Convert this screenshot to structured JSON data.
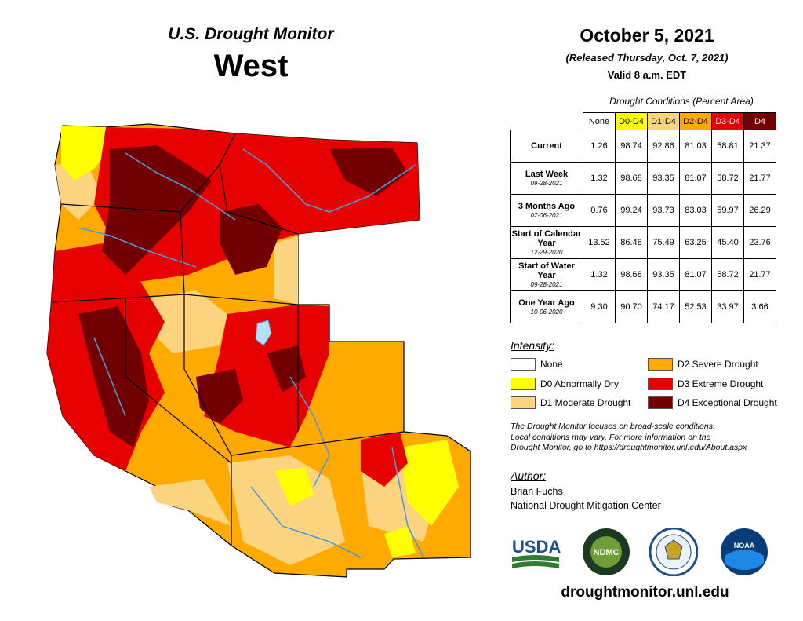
{
  "header": {
    "product": "U.S. Drought Monitor",
    "region": "West",
    "date": "October 5, 2021",
    "released": "(Released Thursday, Oct. 7, 2021)",
    "valid": "Valid 8 a.m. EDT"
  },
  "table": {
    "caption": "Drought Conditions (Percent Area)",
    "columns": [
      "None",
      "D0-D4",
      "D1-D4",
      "D2-D4",
      "D3-D4",
      "D4"
    ],
    "column_colors": [
      "#ffffff",
      "#ffff00",
      "#fcd37f",
      "#ffaa00",
      "#e60000",
      "#730000"
    ],
    "rows": [
      {
        "label": "Current",
        "sub": "",
        "values": [
          "1.26",
          "98.74",
          "92.86",
          "81.03",
          "58.81",
          "21.37"
        ]
      },
      {
        "label": "Last Week",
        "sub": "09-28-2021",
        "values": [
          "1.32",
          "98.68",
          "93.35",
          "81.07",
          "58.72",
          "21.77"
        ]
      },
      {
        "label": "3 Months Ago",
        "sub": "07-06-2021",
        "values": [
          "0.76",
          "99.24",
          "93.73",
          "83.03",
          "59.97",
          "26.29"
        ]
      },
      {
        "label": "Start of Calendar Year",
        "sub": "12-29-2020",
        "values": [
          "13.52",
          "86.48",
          "75.49",
          "63.25",
          "45.40",
          "23.76"
        ]
      },
      {
        "label": "Start of Water Year",
        "sub": "09-28-2021",
        "values": [
          "1.32",
          "98.68",
          "93.35",
          "81.07",
          "58.72",
          "21.77"
        ]
      },
      {
        "label": "One Year Ago",
        "sub": "10-06-2020",
        "values": [
          "9.30",
          "90.70",
          "74.17",
          "52.53",
          "33.97",
          "3.66"
        ]
      }
    ]
  },
  "legend": {
    "heading": "Intensity:",
    "items": [
      {
        "label": "None",
        "color": "#ffffff"
      },
      {
        "label": "D0 Abnormally Dry",
        "color": "#ffff00"
      },
      {
        "label": "D1 Moderate Drought",
        "color": "#fcd37f"
      },
      {
        "label": "D2 Severe Drought",
        "color": "#ffaa00"
      },
      {
        "label": "D3 Extreme Drought",
        "color": "#e60000"
      },
      {
        "label": "D4 Exceptional Drought",
        "color": "#730000"
      }
    ]
  },
  "note": {
    "line1": "The Drought Monitor focuses on broad-scale conditions.",
    "line2": "Local conditions may vary. For more information on the",
    "line3": "Drought Monitor, go to https://droughtmonitor.unl.edu/About.aspx"
  },
  "author": {
    "heading": "Author:",
    "name": "Brian Fuchs",
    "org": "National Drought Mitigation Center"
  },
  "logos": {
    "usda": "USDA",
    "ndmc": "NDMC",
    "noaa": "NOAA"
  },
  "footer": {
    "url": "droughtmonitor.unl.edu"
  },
  "map": {
    "category_colors": {
      "d0": "#ffff00",
      "d1": "#fcd37f",
      "d2": "#ffaa00",
      "d3": "#e60000",
      "d4": "#730000",
      "water": "#4b9bd8",
      "lake": "#b7dff0",
      "border": "#000000"
    }
  }
}
